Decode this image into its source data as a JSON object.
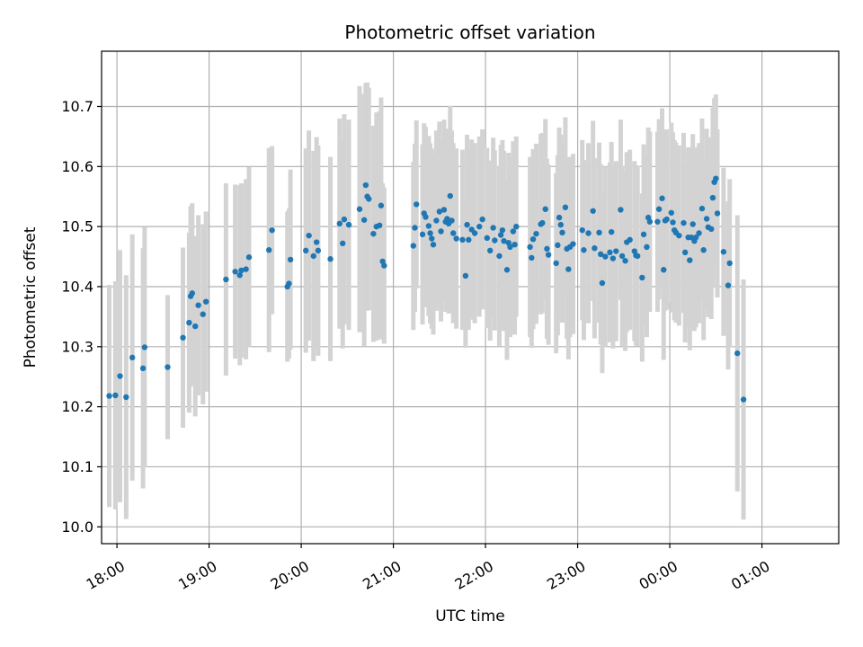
{
  "chart_data": {
    "type": "scatter",
    "title": "Photometric offset variation",
    "xlabel": "UTC time",
    "ylabel": "Photometric offset",
    "x_tick_labels": [
      "18:00",
      "19:00",
      "20:00",
      "21:00",
      "22:00",
      "23:00",
      "00:00",
      "01:00"
    ],
    "y_tick_labels": [
      "10.0",
      "10.1",
      "10.2",
      "10.3",
      "10.4",
      "10.5",
      "10.6",
      "10.7"
    ],
    "y_ticks": [
      10.0,
      10.1,
      10.2,
      10.3,
      10.4,
      10.5,
      10.6,
      10.7
    ],
    "xlim_minutes_after_18_00": [
      -10,
      470
    ],
    "ylim": [
      9.972,
      10.792
    ],
    "grid": true,
    "colors": {
      "point": "#1f77b4",
      "errorbar": "#d3d3d3",
      "grid": "#b0b0b0"
    },
    "series": [
      {
        "points": [
          {
            "t": "17:55",
            "y": 10.218,
            "err": 0.185
          },
          {
            "t": "17:59",
            "y": 10.219,
            "err": 0.19
          },
          {
            "t": "18:02",
            "y": 10.251,
            "err": 0.21
          },
          {
            "t": "18:06",
            "y": 10.216,
            "err": 0.203
          },
          {
            "t": "18:10",
            "y": 10.282,
            "err": 0.205
          },
          {
            "t": "18:17",
            "y": 10.264,
            "err": 0.2
          },
          {
            "t": "18:18",
            "y": 10.299,
            "err": 0.2
          },
          {
            "t": "18:33",
            "y": 10.266,
            "err": 0.12
          },
          {
            "t": "18:43",
            "y": 10.315,
            "err": 0.15
          },
          {
            "t": "18:47",
            "y": 10.34,
            "err": 0.15
          },
          {
            "t": "18:48",
            "y": 10.384,
            "err": 0.15
          },
          {
            "t": "18:49",
            "y": 10.389,
            "err": 0.15
          },
          {
            "t": "18:51",
            "y": 10.334,
            "err": 0.15
          },
          {
            "t": "18:53",
            "y": 10.369,
            "err": 0.15
          },
          {
            "t": "18:56",
            "y": 10.354,
            "err": 0.15
          },
          {
            "t": "18:58",
            "y": 10.375,
            "err": 0.15
          },
          {
            "t": "19:11",
            "y": 10.412,
            "err": 0.16
          },
          {
            "t": "19:17",
            "y": 10.425,
            "err": 0.145
          },
          {
            "t": "19:20",
            "y": 10.419,
            "err": 0.15
          },
          {
            "t": "19:21",
            "y": 10.427,
            "err": 0.145
          },
          {
            "t": "19:24",
            "y": 10.429,
            "err": 0.15
          },
          {
            "t": "19:26",
            "y": 10.449,
            "err": 0.15
          },
          {
            "t": "19:39",
            "y": 10.461,
            "err": 0.17
          },
          {
            "t": "19:41",
            "y": 10.494,
            "err": 0.14
          },
          {
            "t": "19:51",
            "y": 10.4,
            "err": 0.125
          },
          {
            "t": "19:52",
            "y": 10.405,
            "err": 0.125
          },
          {
            "t": "19:53",
            "y": 10.445,
            "err": 0.15
          },
          {
            "t": "20:03",
            "y": 10.46,
            "err": 0.17
          },
          {
            "t": "20:05",
            "y": 10.485,
            "err": 0.175
          },
          {
            "t": "20:08",
            "y": 10.451,
            "err": 0.175
          },
          {
            "t": "20:10",
            "y": 10.474,
            "err": 0.175
          },
          {
            "t": "20:11",
            "y": 10.46,
            "err": 0.175
          },
          {
            "t": "20:19",
            "y": 10.446,
            "err": 0.17
          },
          {
            "t": "20:25",
            "y": 10.505,
            "err": 0.175
          },
          {
            "t": "20:27",
            "y": 10.472,
            "err": 0.175
          },
          {
            "t": "20:28",
            "y": 10.512,
            "err": 0.175
          },
          {
            "t": "20:31",
            "y": 10.503,
            "err": 0.175
          },
          {
            "t": "20:38",
            "y": 10.529,
            "err": 0.205
          },
          {
            "t": "20:41",
            "y": 10.511,
            "err": 0.21
          },
          {
            "t": "20:42",
            "y": 10.569,
            "err": 0.17
          },
          {
            "t": "20:43",
            "y": 10.55,
            "err": 0.19
          },
          {
            "t": "20:44",
            "y": 10.546,
            "err": 0.185
          },
          {
            "t": "20:47",
            "y": 10.488,
            "err": 0.18
          },
          {
            "t": "20:49",
            "y": 10.5,
            "err": 0.19
          },
          {
            "t": "20:51",
            "y": 10.502,
            "err": 0.19
          },
          {
            "t": "20:52",
            "y": 10.535,
            "err": 0.18
          },
          {
            "t": "20:53",
            "y": 10.442,
            "err": 0.13
          },
          {
            "t": "20:54",
            "y": 10.435,
            "err": 0.13
          },
          {
            "t": "21:13",
            "y": 10.468,
            "err": 0.14
          },
          {
            "t": "21:14",
            "y": 10.498,
            "err": 0.14
          },
          {
            "t": "21:15",
            "y": 10.537,
            "err": 0.14
          },
          {
            "t": "21:19",
            "y": 10.487,
            "err": 0.15
          },
          {
            "t": "21:20",
            "y": 10.522,
            "err": 0.15
          },
          {
            "t": "21:21",
            "y": 10.516,
            "err": 0.15
          },
          {
            "t": "21:23",
            "y": 10.501,
            "err": 0.15
          },
          {
            "t": "21:24",
            "y": 10.489,
            "err": 0.15
          },
          {
            "t": "21:25",
            "y": 10.48,
            "err": 0.15
          },
          {
            "t": "21:26",
            "y": 10.47,
            "err": 0.15
          },
          {
            "t": "21:28",
            "y": 10.51,
            "err": 0.15
          },
          {
            "t": "21:30",
            "y": 10.525,
            "err": 0.15
          },
          {
            "t": "21:31",
            "y": 10.492,
            "err": 0.15
          },
          {
            "t": "21:33",
            "y": 10.528,
            "err": 0.15
          },
          {
            "t": "21:34",
            "y": 10.508,
            "err": 0.15
          },
          {
            "t": "21:35",
            "y": 10.513,
            "err": 0.15
          },
          {
            "t": "21:36",
            "y": 10.505,
            "err": 0.15
          },
          {
            "t": "21:37",
            "y": 10.551,
            "err": 0.15
          },
          {
            "t": "21:38",
            "y": 10.51,
            "err": 0.15
          },
          {
            "t": "21:39",
            "y": 10.489,
            "err": 0.15
          },
          {
            "t": "21:41",
            "y": 10.48,
            "err": 0.15
          },
          {
            "t": "21:45",
            "y": 10.478,
            "err": 0.15
          },
          {
            "t": "21:47",
            "y": 10.418,
            "err": 0.12
          },
          {
            "t": "21:48",
            "y": 10.503,
            "err": 0.15
          },
          {
            "t": "21:49",
            "y": 10.478,
            "err": 0.15
          },
          {
            "t": "21:51",
            "y": 10.495,
            "err": 0.15
          },
          {
            "t": "21:53",
            "y": 10.489,
            "err": 0.15
          },
          {
            "t": "21:56",
            "y": 10.5,
            "err": 0.15
          },
          {
            "t": "21:58",
            "y": 10.512,
            "err": 0.15
          },
          {
            "t": "22:01",
            "y": 10.481,
            "err": 0.15
          },
          {
            "t": "22:03",
            "y": 10.46,
            "err": 0.15
          },
          {
            "t": "22:05",
            "y": 10.498,
            "err": 0.15
          },
          {
            "t": "22:06",
            "y": 10.477,
            "err": 0.15
          },
          {
            "t": "22:09",
            "y": 10.451,
            "err": 0.15
          },
          {
            "t": "22:10",
            "y": 10.486,
            "err": 0.15
          },
          {
            "t": "22:11",
            "y": 10.494,
            "err": 0.15
          },
          {
            "t": "22:12",
            "y": 10.476,
            "err": 0.15
          },
          {
            "t": "22:14",
            "y": 10.428,
            "err": 0.15
          },
          {
            "t": "22:15",
            "y": 10.473,
            "err": 0.15
          },
          {
            "t": "22:16",
            "y": 10.466,
            "err": 0.15
          },
          {
            "t": "22:18",
            "y": 10.492,
            "err": 0.15
          },
          {
            "t": "22:19",
            "y": 10.47,
            "err": 0.15
          },
          {
            "t": "22:20",
            "y": 10.5,
            "err": 0.15
          },
          {
            "t": "22:29",
            "y": 10.466,
            "err": 0.15
          },
          {
            "t": "22:30",
            "y": 10.448,
            "err": 0.15
          },
          {
            "t": "22:31",
            "y": 10.479,
            "err": 0.15
          },
          {
            "t": "22:33",
            "y": 10.488,
            "err": 0.15
          },
          {
            "t": "22:36",
            "y": 10.504,
            "err": 0.15
          },
          {
            "t": "22:37",
            "y": 10.506,
            "err": 0.15
          },
          {
            "t": "22:39",
            "y": 10.529,
            "err": 0.15
          },
          {
            "t": "22:40",
            "y": 10.463,
            "err": 0.15
          },
          {
            "t": "22:41",
            "y": 10.453,
            "err": 0.15
          },
          {
            "t": "22:46",
            "y": 10.439,
            "err": 0.15
          },
          {
            "t": "22:47",
            "y": 10.469,
            "err": 0.15
          },
          {
            "t": "22:48",
            "y": 10.515,
            "err": 0.15
          },
          {
            "t": "22:49",
            "y": 10.503,
            "err": 0.15
          },
          {
            "t": "22:50",
            "y": 10.49,
            "err": 0.15
          },
          {
            "t": "22:52",
            "y": 10.532,
            "err": 0.15
          },
          {
            "t": "22:53",
            "y": 10.463,
            "err": 0.15
          },
          {
            "t": "22:54",
            "y": 10.429,
            "err": 0.15
          },
          {
            "t": "22:55",
            "y": 10.466,
            "err": 0.15
          },
          {
            "t": "22:57",
            "y": 10.471,
            "err": 0.15
          },
          {
            "t": "23:03",
            "y": 10.494,
            "err": 0.15
          },
          {
            "t": "23:04",
            "y": 10.461,
            "err": 0.15
          },
          {
            "t": "23:07",
            "y": 10.489,
            "err": 0.15
          },
          {
            "t": "23:10",
            "y": 10.526,
            "err": 0.15
          },
          {
            "t": "23:11",
            "y": 10.464,
            "err": 0.15
          },
          {
            "t": "23:14",
            "y": 10.49,
            "err": 0.15
          },
          {
            "t": "23:15",
            "y": 10.454,
            "err": 0.15
          },
          {
            "t": "23:16",
            "y": 10.406,
            "err": 0.15
          },
          {
            "t": "23:18",
            "y": 10.45,
            "err": 0.15
          },
          {
            "t": "23:21",
            "y": 10.457,
            "err": 0.15
          },
          {
            "t": "23:22",
            "y": 10.491,
            "err": 0.15
          },
          {
            "t": "23:23",
            "y": 10.447,
            "err": 0.15
          },
          {
            "t": "23:25",
            "y": 10.459,
            "err": 0.15
          },
          {
            "t": "23:28",
            "y": 10.528,
            "err": 0.15
          },
          {
            "t": "23:29",
            "y": 10.451,
            "err": 0.15
          },
          {
            "t": "23:31",
            "y": 10.443,
            "err": 0.15
          },
          {
            "t": "23:32",
            "y": 10.474,
            "err": 0.15
          },
          {
            "t": "23:34",
            "y": 10.478,
            "err": 0.15
          },
          {
            "t": "23:37",
            "y": 10.459,
            "err": 0.15
          },
          {
            "t": "23:38",
            "y": 10.452,
            "err": 0.15
          },
          {
            "t": "23:39",
            "y": 10.451,
            "err": 0.15
          },
          {
            "t": "23:42",
            "y": 10.415,
            "err": 0.14
          },
          {
            "t": "23:43",
            "y": 10.487,
            "err": 0.15
          },
          {
            "t": "23:45",
            "y": 10.466,
            "err": 0.15
          },
          {
            "t": "23:46",
            "y": 10.515,
            "err": 0.15
          },
          {
            "t": "23:47",
            "y": 10.508,
            "err": 0.15
          },
          {
            "t": "23:52",
            "y": 10.508,
            "err": 0.15
          },
          {
            "t": "23:53",
            "y": 10.529,
            "err": 0.15
          },
          {
            "t": "23:55",
            "y": 10.547,
            "err": 0.15
          },
          {
            "t": "23:56",
            "y": 10.428,
            "err": 0.15
          },
          {
            "t": "23:57",
            "y": 10.51,
            "err": 0.15
          },
          {
            "t": "23:58",
            "y": 10.512,
            "err": 0.15
          },
          {
            "t": "00:01",
            "y": 10.523,
            "err": 0.15
          },
          {
            "t": "00:02",
            "y": 10.507,
            "err": 0.15
          },
          {
            "t": "00:03",
            "y": 10.494,
            "err": 0.15
          },
          {
            "t": "00:04",
            "y": 10.49,
            "err": 0.15
          },
          {
            "t": "00:06",
            "y": 10.485,
            "err": 0.15
          },
          {
            "t": "00:09",
            "y": 10.506,
            "err": 0.15
          },
          {
            "t": "00:10",
            "y": 10.457,
            "err": 0.15
          },
          {
            "t": "00:12",
            "y": 10.482,
            "err": 0.15
          },
          {
            "t": "00:13",
            "y": 10.444,
            "err": 0.15
          },
          {
            "t": "00:14",
            "y": 10.482,
            "err": 0.15
          },
          {
            "t": "00:15",
            "y": 10.504,
            "err": 0.15
          },
          {
            "t": "00:16",
            "y": 10.476,
            "err": 0.15
          },
          {
            "t": "00:17",
            "y": 10.482,
            "err": 0.15
          },
          {
            "t": "00:19",
            "y": 10.489,
            "err": 0.15
          },
          {
            "t": "00:21",
            "y": 10.53,
            "err": 0.15
          },
          {
            "t": "00:22",
            "y": 10.461,
            "err": 0.15
          },
          {
            "t": "00:24",
            "y": 10.513,
            "err": 0.15
          },
          {
            "t": "00:25",
            "y": 10.499,
            "err": 0.15
          },
          {
            "t": "00:27",
            "y": 10.496,
            "err": 0.15
          },
          {
            "t": "00:28",
            "y": 10.548,
            "err": 0.15
          },
          {
            "t": "00:29",
            "y": 10.574,
            "err": 0.14
          },
          {
            "t": "00:30",
            "y": 10.58,
            "err": 0.14
          },
          {
            "t": "00:31",
            "y": 10.522,
            "err": 0.14
          },
          {
            "t": "00:35",
            "y": 10.458,
            "err": 0.14
          },
          {
            "t": "00:38",
            "y": 10.402,
            "err": 0.14
          },
          {
            "t": "00:39",
            "y": 10.439,
            "err": 0.14
          },
          {
            "t": "00:44",
            "y": 10.289,
            "err": 0.23
          },
          {
            "t": "00:48",
            "y": 10.212,
            "err": 0.2
          }
        ]
      }
    ]
  }
}
